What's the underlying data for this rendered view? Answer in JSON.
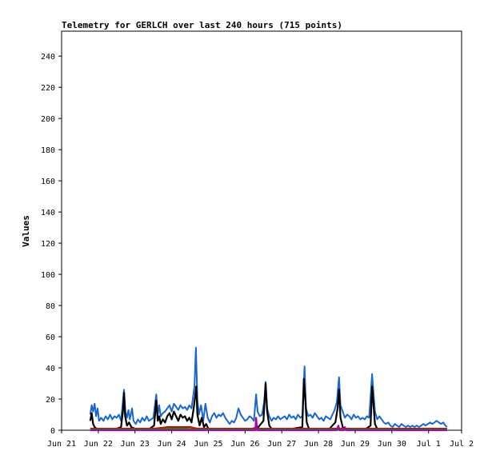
{
  "chart_data": {
    "type": "line",
    "title": "Telemetry for GERLCH over last 240 hours (715 points)",
    "xlabel": "",
    "ylabel": "Values",
    "ylim": [
      0,
      256
    ],
    "yticks": [
      0,
      20,
      40,
      60,
      80,
      100,
      120,
      140,
      160,
      180,
      200,
      220,
      240
    ],
    "xlim": [
      0,
      10.9
    ],
    "xticks": [
      {
        "x": 0,
        "label": "Jun 21"
      },
      {
        "x": 1,
        "label": "Jun 22"
      },
      {
        "x": 2,
        "label": "Jun 23"
      },
      {
        "x": 3,
        "label": "Jun 24"
      },
      {
        "x": 4,
        "label": "Jun 25"
      },
      {
        "x": 5,
        "label": "Jun 26"
      },
      {
        "x": 6,
        "label": "Jun 27"
      },
      {
        "x": 7,
        "label": "Jun 28"
      },
      {
        "x": 8,
        "label": "Jun 29"
      },
      {
        "x": 9,
        "label": "Jun 30"
      },
      {
        "x": 10,
        "label": "Jul 1"
      },
      {
        "x": 10.9,
        "label": "Jul 2"
      }
    ],
    "grid": false,
    "legend": "none",
    "series": [
      {
        "color": "#1a66cc",
        "points": [
          [
            0.78,
            10
          ],
          [
            0.82,
            16
          ],
          [
            0.86,
            12
          ],
          [
            0.9,
            17
          ],
          [
            0.94,
            9
          ],
          [
            0.98,
            14
          ],
          [
            1.02,
            6
          ],
          [
            1.08,
            8
          ],
          [
            1.14,
            6
          ],
          [
            1.2,
            9
          ],
          [
            1.26,
            7
          ],
          [
            1.32,
            10
          ],
          [
            1.38,
            7
          ],
          [
            1.44,
            9
          ],
          [
            1.5,
            8
          ],
          [
            1.56,
            10
          ],
          [
            1.62,
            6
          ],
          [
            1.7,
            26
          ],
          [
            1.74,
            12
          ],
          [
            1.78,
            8
          ],
          [
            1.82,
            13
          ],
          [
            1.86,
            7
          ],
          [
            1.92,
            14
          ],
          [
            1.96,
            6
          ],
          [
            2.02,
            4
          ],
          [
            2.08,
            7
          ],
          [
            2.14,
            5
          ],
          [
            2.2,
            8
          ],
          [
            2.26,
            6
          ],
          [
            2.32,
            9
          ],
          [
            2.38,
            6
          ],
          [
            2.44,
            7
          ],
          [
            2.5,
            8
          ],
          [
            2.58,
            23
          ],
          [
            2.62,
            10
          ],
          [
            2.66,
            16
          ],
          [
            2.7,
            9
          ],
          [
            2.76,
            11
          ],
          [
            2.82,
            12
          ],
          [
            2.88,
            14
          ],
          [
            2.94,
            16
          ],
          [
            3.0,
            12
          ],
          [
            3.06,
            17
          ],
          [
            3.12,
            15
          ],
          [
            3.18,
            13
          ],
          [
            3.24,
            16
          ],
          [
            3.3,
            14
          ],
          [
            3.36,
            15
          ],
          [
            3.42,
            13
          ],
          [
            3.48,
            16
          ],
          [
            3.54,
            14
          ],
          [
            3.62,
            28
          ],
          [
            3.66,
            53
          ],
          [
            3.7,
            20
          ],
          [
            3.74,
            10
          ],
          [
            3.8,
            16
          ],
          [
            3.86,
            6
          ],
          [
            3.92,
            17
          ],
          [
            3.98,
            8
          ],
          [
            4.04,
            5
          ],
          [
            4.1,
            9
          ],
          [
            4.16,
            11
          ],
          [
            4.22,
            8
          ],
          [
            4.28,
            10
          ],
          [
            4.34,
            9
          ],
          [
            4.4,
            11
          ],
          [
            4.46,
            8
          ],
          [
            4.52,
            6
          ],
          [
            4.58,
            4
          ],
          [
            4.64,
            6
          ],
          [
            4.7,
            5
          ],
          [
            4.76,
            8
          ],
          [
            4.82,
            14
          ],
          [
            4.88,
            10
          ],
          [
            4.94,
            8
          ],
          [
            5.0,
            6
          ],
          [
            5.06,
            7
          ],
          [
            5.12,
            9
          ],
          [
            5.18,
            8
          ],
          [
            5.24,
            6
          ],
          [
            5.3,
            23
          ],
          [
            5.34,
            12
          ],
          [
            5.4,
            9
          ],
          [
            5.46,
            10
          ],
          [
            5.52,
            18
          ],
          [
            5.56,
            31
          ],
          [
            5.6,
            14
          ],
          [
            5.66,
            9
          ],
          [
            5.72,
            6
          ],
          [
            5.78,
            8
          ],
          [
            5.84,
            7
          ],
          [
            5.9,
            9
          ],
          [
            5.96,
            7
          ],
          [
            6.02,
            8
          ],
          [
            6.08,
            9
          ],
          [
            6.14,
            7
          ],
          [
            6.2,
            10
          ],
          [
            6.26,
            8
          ],
          [
            6.32,
            9
          ],
          [
            6.38,
            7
          ],
          [
            6.44,
            10
          ],
          [
            6.5,
            8
          ],
          [
            6.56,
            9
          ],
          [
            6.62,
            41
          ],
          [
            6.66,
            14
          ],
          [
            6.72,
            9
          ],
          [
            6.78,
            10
          ],
          [
            6.84,
            8
          ],
          [
            6.9,
            11
          ],
          [
            6.96,
            9
          ],
          [
            7.02,
            7
          ],
          [
            7.08,
            8
          ],
          [
            7.14,
            6
          ],
          [
            7.2,
            9
          ],
          [
            7.26,
            8
          ],
          [
            7.32,
            7
          ],
          [
            7.38,
            10
          ],
          [
            7.44,
            13
          ],
          [
            7.5,
            18
          ],
          [
            7.56,
            34
          ],
          [
            7.6,
            16
          ],
          [
            7.66,
            12
          ],
          [
            7.72,
            8
          ],
          [
            7.78,
            10
          ],
          [
            7.84,
            9
          ],
          [
            7.9,
            7
          ],
          [
            7.96,
            10
          ],
          [
            8.02,
            8
          ],
          [
            8.08,
            9
          ],
          [
            8.14,
            7
          ],
          [
            8.2,
            8
          ],
          [
            8.26,
            7
          ],
          [
            8.32,
            9
          ],
          [
            8.38,
            8
          ],
          [
            8.46,
            36
          ],
          [
            8.5,
            24
          ],
          [
            8.54,
            12
          ],
          [
            8.6,
            7
          ],
          [
            8.66,
            9
          ],
          [
            8.72,
            7
          ],
          [
            8.78,
            5
          ],
          [
            8.84,
            4
          ],
          [
            8.9,
            5
          ],
          [
            8.96,
            3
          ],
          [
            9.02,
            2
          ],
          [
            9.08,
            4
          ],
          [
            9.14,
            3
          ],
          [
            9.2,
            2
          ],
          [
            9.26,
            4
          ],
          [
            9.32,
            3
          ],
          [
            9.38,
            2
          ],
          [
            9.44,
            3
          ],
          [
            9.5,
            2
          ],
          [
            9.56,
            3
          ],
          [
            9.62,
            2
          ],
          [
            9.68,
            3
          ],
          [
            9.74,
            2
          ],
          [
            9.8,
            3
          ],
          [
            9.86,
            4
          ],
          [
            9.92,
            3
          ],
          [
            9.98,
            4
          ],
          [
            10.04,
            5
          ],
          [
            10.1,
            4
          ],
          [
            10.16,
            5
          ],
          [
            10.22,
            6
          ],
          [
            10.28,
            5
          ],
          [
            10.34,
            4
          ],
          [
            10.4,
            5
          ],
          [
            10.46,
            3
          ],
          [
            10.5,
            2
          ]
        ]
      },
      {
        "color": "#000000",
        "points": [
          [
            0.78,
            6
          ],
          [
            0.82,
            11
          ],
          [
            0.86,
            4
          ],
          [
            0.9,
            2
          ],
          [
            0.96,
            1
          ],
          [
            1.1,
            1
          ],
          [
            1.3,
            1
          ],
          [
            1.5,
            1
          ],
          [
            1.62,
            2
          ],
          [
            1.68,
            14
          ],
          [
            1.7,
            24
          ],
          [
            1.73,
            9
          ],
          [
            1.78,
            3
          ],
          [
            1.84,
            5
          ],
          [
            1.9,
            2
          ],
          [
            2.0,
            1
          ],
          [
            2.2,
            1
          ],
          [
            2.4,
            1
          ],
          [
            2.52,
            3
          ],
          [
            2.58,
            19
          ],
          [
            2.62,
            6
          ],
          [
            2.66,
            9
          ],
          [
            2.7,
            4
          ],
          [
            2.76,
            7
          ],
          [
            2.82,
            5
          ],
          [
            2.88,
            9
          ],
          [
            2.94,
            11
          ],
          [
            3.0,
            7
          ],
          [
            3.06,
            12
          ],
          [
            3.12,
            9
          ],
          [
            3.18,
            6
          ],
          [
            3.24,
            10
          ],
          [
            3.3,
            8
          ],
          [
            3.36,
            9
          ],
          [
            3.42,
            6
          ],
          [
            3.48,
            8
          ],
          [
            3.54,
            5
          ],
          [
            3.6,
            14
          ],
          [
            3.64,
            22
          ],
          [
            3.67,
            28
          ],
          [
            3.7,
            10
          ],
          [
            3.76,
            3
          ],
          [
            3.82,
            8
          ],
          [
            3.88,
            2
          ],
          [
            3.94,
            4
          ],
          [
            4.0,
            1
          ],
          [
            4.3,
            1
          ],
          [
            4.6,
            1
          ],
          [
            4.9,
            1
          ],
          [
            5.2,
            1
          ],
          [
            5.36,
            2
          ],
          [
            5.5,
            6
          ],
          [
            5.56,
            30
          ],
          [
            5.6,
            12
          ],
          [
            5.66,
            3
          ],
          [
            5.72,
            1
          ],
          [
            6.0,
            1
          ],
          [
            6.3,
            1
          ],
          [
            6.56,
            2
          ],
          [
            6.6,
            33
          ],
          [
            6.64,
            20
          ],
          [
            6.68,
            5
          ],
          [
            6.74,
            1
          ],
          [
            7.0,
            1
          ],
          [
            7.3,
            1
          ],
          [
            7.46,
            5
          ],
          [
            7.52,
            14
          ],
          [
            7.56,
            26
          ],
          [
            7.6,
            8
          ],
          [
            7.66,
            2
          ],
          [
            7.72,
            1
          ],
          [
            8.0,
            1
          ],
          [
            8.3,
            1
          ],
          [
            8.42,
            3
          ],
          [
            8.46,
            28
          ],
          [
            8.5,
            16
          ],
          [
            8.54,
            4
          ],
          [
            8.6,
            1
          ],
          [
            9.0,
            1
          ],
          [
            9.5,
            1
          ],
          [
            10.0,
            1
          ],
          [
            10.5,
            1
          ]
        ]
      },
      {
        "color": "#cc0000",
        "points": [
          [
            0.78,
            1
          ],
          [
            1.5,
            1
          ],
          [
            2.5,
            1
          ],
          [
            2.9,
            2
          ],
          [
            3.2,
            2
          ],
          [
            3.5,
            2
          ],
          [
            3.7,
            1
          ],
          [
            4.5,
            1
          ],
          [
            5.5,
            1
          ],
          [
            6.5,
            1
          ],
          [
            7.5,
            1
          ],
          [
            8.5,
            1
          ],
          [
            9.5,
            1
          ],
          [
            10.5,
            1
          ]
        ]
      },
      {
        "color": "#009900",
        "points": [
          [
            0.78,
            0.5
          ],
          [
            2.5,
            0.5
          ],
          [
            3.0,
            1
          ],
          [
            3.4,
            1
          ],
          [
            3.6,
            0.5
          ],
          [
            5.0,
            0.5
          ],
          [
            7.0,
            0.5
          ],
          [
            9.0,
            0.5
          ],
          [
            10.5,
            0.5
          ]
        ]
      },
      {
        "color": "#aa00aa",
        "points": [
          [
            0.78,
            0
          ],
          [
            5.28,
            0
          ],
          [
            5.3,
            8
          ],
          [
            5.33,
            0
          ],
          [
            7.5,
            0
          ],
          [
            7.54,
            3
          ],
          [
            7.58,
            0
          ],
          [
            7.7,
            0
          ],
          [
            7.72,
            2
          ],
          [
            7.76,
            0
          ],
          [
            10.5,
            0
          ]
        ]
      }
    ]
  }
}
